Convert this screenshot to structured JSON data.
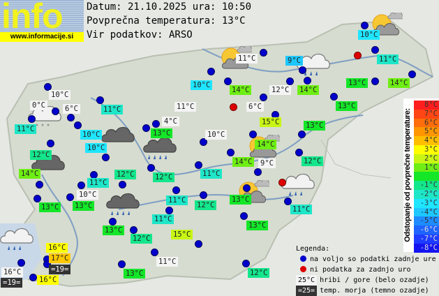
{
  "logo": {
    "word": "info",
    "url": "www.informacije.si"
  },
  "header": {
    "date_line": "Datum: 21.10.2025 ura: 10:50",
    "avg_line": "Povprečna temperatura: 13°C",
    "source_line": "Vir podatkov: ARSO"
  },
  "colors": {
    "available_dot": "#0000cc",
    "missing_dot": "#dd0000",
    "mountain_bg": "#f4f4f4",
    "sea_bg": "#333333"
  },
  "stations": [
    {
      "t": "10°C",
      "c": "#f4f4f4"
    },
    {
      "t": "0°C",
      "c": "#f4f4f4"
    },
    {
      "t": "6°C",
      "c": "#f4f4f4"
    },
    {
      "t": "11°C",
      "c": "#1ee6c8"
    },
    {
      "t": "11°C",
      "c": "#1ee6c8"
    },
    {
      "t": "10°C",
      "c": "#1ee6ff"
    },
    {
      "t": "10°C",
      "c": "#1ee6ff"
    },
    {
      "t": "12°C",
      "c": "#14e68c"
    },
    {
      "t": "14°C",
      "c": "#6eee14"
    },
    {
      "t": "11°C",
      "c": "#1ee6c8"
    },
    {
      "t": "12°C",
      "c": "#14e68c"
    },
    {
      "t": "10°C",
      "c": "#f4f4f4"
    },
    {
      "t": "13°C",
      "c": "#14e628"
    },
    {
      "t": "13°C",
      "c": "#14e628"
    },
    {
      "t": "10°C",
      "c": "#1ee6ff"
    },
    {
      "t": "11°C",
      "c": "#f4f4f4"
    },
    {
      "t": "4°C",
      "c": "#f4f4f4"
    },
    {
      "t": "13°C",
      "c": "#14e628"
    },
    {
      "t": "10°C",
      "c": "#f4f4f4"
    },
    {
      "t": "12°C",
      "c": "#14e68c"
    },
    {
      "t": "11°C",
      "c": "#1ee6c8"
    },
    {
      "t": "11°C",
      "c": "#1ee6c8"
    },
    {
      "t": "12°C",
      "c": "#14e68c"
    },
    {
      "t": "13°C",
      "c": "#14e628"
    },
    {
      "t": "11°C",
      "c": "#1ee6c8"
    },
    {
      "t": "13°C",
      "c": "#14e628"
    },
    {
      "t": "12°C",
      "c": "#14e68c"
    },
    {
      "t": "15°C",
      "c": "#c8f514"
    },
    {
      "t": "11°C",
      "c": "#f4f4f4"
    },
    {
      "t": "13°C",
      "c": "#14e628"
    },
    {
      "t": "12°C",
      "c": "#14e68c"
    },
    {
      "t": "13°C",
      "c": "#14e628"
    },
    {
      "t": "11°C",
      "c": "#1ee6c8"
    },
    {
      "t": "16°C",
      "c": "#ffff00"
    },
    {
      "t": "17°C",
      "c": "#ffc800"
    },
    {
      "t": "=19=",
      "c": "#333333"
    },
    {
      "t": "16°C",
      "c": "#f4f4f4"
    },
    {
      "t": "=19=",
      "c": "#333333"
    },
    {
      "t": "16°C",
      "c": "#ffff00"
    },
    {
      "t": "10°C",
      "c": "#1ee6ff"
    },
    {
      "t": "11°C",
      "c": "#1ee6c8"
    },
    {
      "t": "9°C",
      "c": "#1ec8ff"
    },
    {
      "t": "11°C",
      "c": "#f4f4f4"
    },
    {
      "t": "14°C",
      "c": "#6eee14"
    },
    {
      "t": "12°C",
      "c": "#f4f4f4"
    },
    {
      "t": "14°C",
      "c": "#6eee14"
    },
    {
      "t": "13°C",
      "c": "#14e628"
    },
    {
      "t": "14°C",
      "c": "#6eee14"
    },
    {
      "t": "6°C",
      "c": "#f4f4f4"
    },
    {
      "t": "13°C",
      "c": "#14e628"
    },
    {
      "t": "15°C",
      "c": "#c8f514"
    },
    {
      "t": "13°C",
      "c": "#14e628"
    },
    {
      "t": "14°C",
      "c": "#6eee14"
    },
    {
      "t": "14°C",
      "c": "#6eee14"
    },
    {
      "t": "9°C",
      "c": "#f4f4f4"
    },
    {
      "t": "12°C",
      "c": "#14e68c"
    }
  ],
  "weather_icons": [
    "sun-cloud",
    "sun-cloud",
    "sun-cloud",
    "sun-cloud",
    "cloud-light-snow",
    "cloud-dark",
    "cloud-dark",
    "cloud-dark-rain",
    "cloud-dark-rain",
    "cloud-light-rain",
    "cloud-light-rain",
    "cloud-light-rain"
  ],
  "scale": {
    "title": "Odstopanje od povprečne temperature:",
    "rows": [
      {
        "label": "8°C",
        "color": "#ff1e1e"
      },
      {
        "label": "7°C",
        "color": "#ff4614"
      },
      {
        "label": "6°C",
        "color": "#ff6e0a"
      },
      {
        "label": "5°C",
        "color": "#ff9600"
      },
      {
        "label": "4°C",
        "color": "#ffbe00"
      },
      {
        "label": "3°C",
        "color": "#ffff00"
      },
      {
        "label": "2°C",
        "color": "#c8f514"
      },
      {
        "label": "1°C",
        "color": "#6eee14"
      },
      {
        "label": "",
        "color": "#14e628"
      },
      {
        "label": "-1°C",
        "color": "#14e68c"
      },
      {
        "label": "-2°C",
        "color": "#1ee6c8"
      },
      {
        "label": "-3°C",
        "color": "#1ee6ff"
      },
      {
        "label": "-4°C",
        "color": "#1ec8ff"
      },
      {
        "label": "-5°C",
        "color": "#1e8cff"
      },
      {
        "label": "-6°C",
        "color": "#1e64ff"
      },
      {
        "label": "-7°C",
        "color": "#1e3cff"
      },
      {
        "label": "-8°C",
        "color": "#1414f0"
      }
    ]
  },
  "legend": {
    "title": "Legenda:",
    "available": "na voljo so podatki zadnje ure",
    "missing": "ni podatka za zadnjo uro",
    "mountain_sample": "25°C",
    "mountain_text": "hribi / gore (belo ozadje)",
    "sea_sample": "=25=",
    "sea_text": "temp. morja (temno ozadje)"
  }
}
